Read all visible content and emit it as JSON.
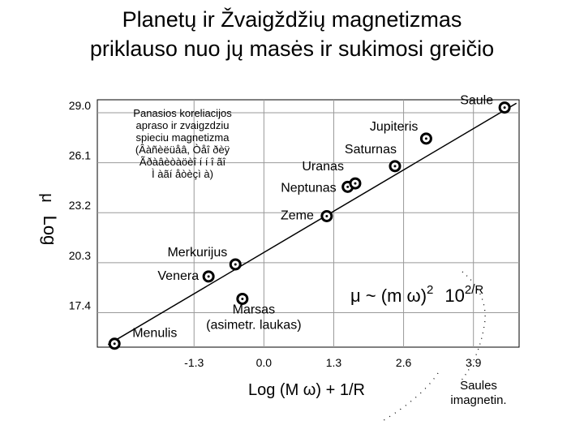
{
  "title_line1": "Planetų ir Žvaigždžių magnetizmas",
  "title_line2": "priklauso nuo jų masės ir sukimosi greičio",
  "chart_data": {
    "type": "scatter",
    "xlabel": "Log (M ω) +  1/R",
    "ylabel_log": "Log",
    "ylabel_mu": "μ",
    "x_ticks": [
      -1.3,
      0.0,
      1.3,
      2.6,
      3.9
    ],
    "x_tick_labels": [
      "-1.3",
      "0.0",
      "1.3",
      "2.6",
      "3.9"
    ],
    "y_ticks": [
      17.4,
      20.3,
      23.2,
      26.1,
      29.0
    ],
    "y_tick_labels": [
      "17.4",
      "20.3",
      "23.2",
      "26.1",
      "29.0"
    ],
    "xlim": [
      -3.1,
      4.75
    ],
    "ylim": [
      15.4,
      29.75
    ],
    "grid": true,
    "points": [
      {
        "label": "Menulis",
        "x": -2.78,
        "y": 15.6
      },
      {
        "label": "Venera",
        "x": -1.03,
        "y": 19.5
      },
      {
        "label": "Merkurijus",
        "x": -0.53,
        "y": 20.2
      },
      {
        "label": "Marsas\n(asimetr. laukas)",
        "x": -0.4,
        "y": 18.2
      },
      {
        "label": "Zeme",
        "x": 1.17,
        "y": 23.0
      },
      {
        "label": "Neptunas",
        "x": 1.56,
        "y": 24.7
      },
      {
        "label": "Uranas",
        "x": 1.7,
        "y": 24.9
      },
      {
        "label": "Saturnas",
        "x": 2.44,
        "y": 25.9
      },
      {
        "label": "Jupiteris",
        "x": 3.02,
        "y": 27.5
      },
      {
        "label": "Saule",
        "x": 4.48,
        "y": 29.3
      }
    ],
    "fit_line": {
      "x": [
        -2.9,
        4.7
      ],
      "y": [
        15.55,
        29.55
      ]
    },
    "annotation": "Panasios koreliacijos\napraso ir zvaigzdziu\nspieciu magnetizma\n(Âàñèëüåâ, Òåî ðèÿ\nÃðàâèòàöèî í í î ãî\nÌ àãí åòèçì à)",
    "formula_main": "μ ~ (m ω)",
    "formula_exp1": "2",
    "formula_factor": "10",
    "formula_exp2": "2/R",
    "saules_note": "Saules\nimagnetin.",
    "marker_color": "#000000",
    "line_color": "#000000",
    "grid_color": "#999999"
  }
}
